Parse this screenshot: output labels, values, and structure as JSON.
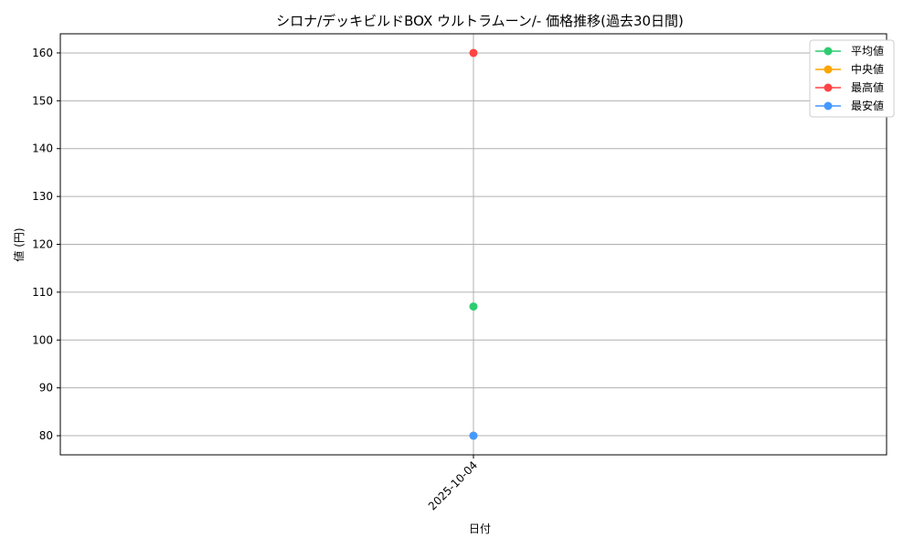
{
  "chart_data": {
    "type": "line",
    "title": "シロナ/デッキビルドBOX ウルトラムーン/- 価格推移(過去30日間)",
    "xlabel": "日付",
    "ylabel": "値 (円)",
    "categories": [
      "2025-10-04"
    ],
    "ylim": [
      76,
      164
    ],
    "yticks": [
      80,
      90,
      100,
      110,
      120,
      130,
      140,
      150,
      160
    ],
    "grid": true,
    "legend_position": "top-right",
    "series": [
      {
        "name": "平均値",
        "values": [
          107
        ],
        "color": "#2ecc71"
      },
      {
        "name": "中央値",
        "values": [
          80
        ],
        "color": "#ffa500"
      },
      {
        "name": "最高値",
        "values": [
          160
        ],
        "color": "#ff4444"
      },
      {
        "name": "最安値",
        "values": [
          80
        ],
        "color": "#4499ff"
      }
    ]
  }
}
